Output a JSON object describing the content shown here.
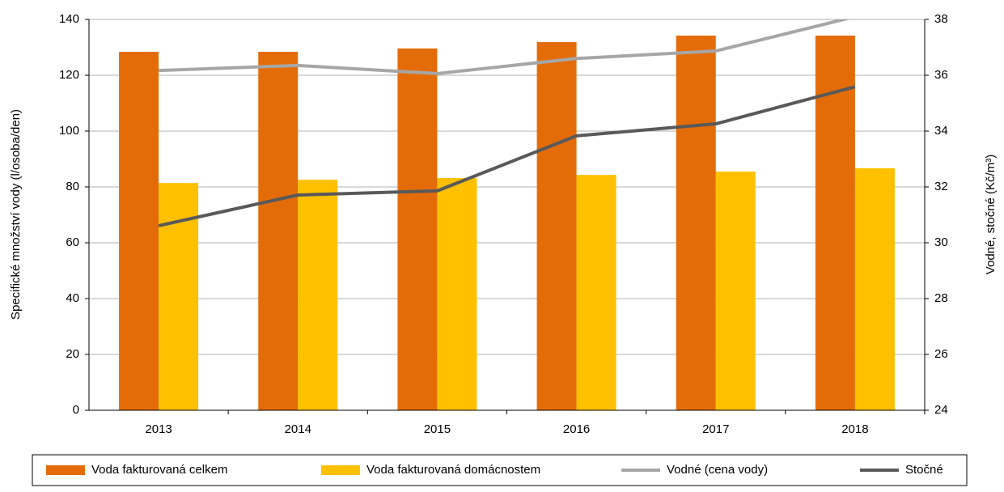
{
  "chart_data": {
    "type": "bar",
    "categories": [
      "2013",
      "2014",
      "2015",
      "2016",
      "2017",
      "2018"
    ],
    "y_label": "Specifické množství vody (l/osoba/den)",
    "y2_label": "Vodné, stočné (Kč/m³)",
    "ylim": [
      0,
      140
    ],
    "yticks": [
      0,
      20,
      40,
      60,
      80,
      100,
      120,
      140
    ],
    "y2lim": [
      24,
      38
    ],
    "y2ticks": [
      24,
      26,
      28,
      30,
      32,
      34,
      36,
      38
    ],
    "grid": true,
    "legend": "bottom",
    "series": [
      {
        "name": "Voda fakturovaná celkem",
        "type": "bar",
        "color": "#e36c09",
        "values": [
          128.4,
          128.4,
          129.6,
          131.9,
          134.2,
          134.2
        ]
      },
      {
        "name": "Voda fakturovaná domácnostem",
        "type": "bar",
        "color": "#ffc000",
        "values": [
          81.4,
          82.6,
          83.2,
          84.3,
          85.5,
          86.7
        ]
      },
      {
        "name": "Vodné (cena vody)",
        "type": "line",
        "axis": "y2",
        "color": "#a6a6a6",
        "values": [
          36.17,
          36.35,
          36.06,
          36.6,
          36.87,
          38.1
        ]
      },
      {
        "name": "Stočné",
        "type": "line",
        "axis": "y2",
        "color": "#595959",
        "values": [
          30.61,
          31.71,
          31.86,
          33.83,
          34.26,
          35.59
        ]
      }
    ]
  }
}
